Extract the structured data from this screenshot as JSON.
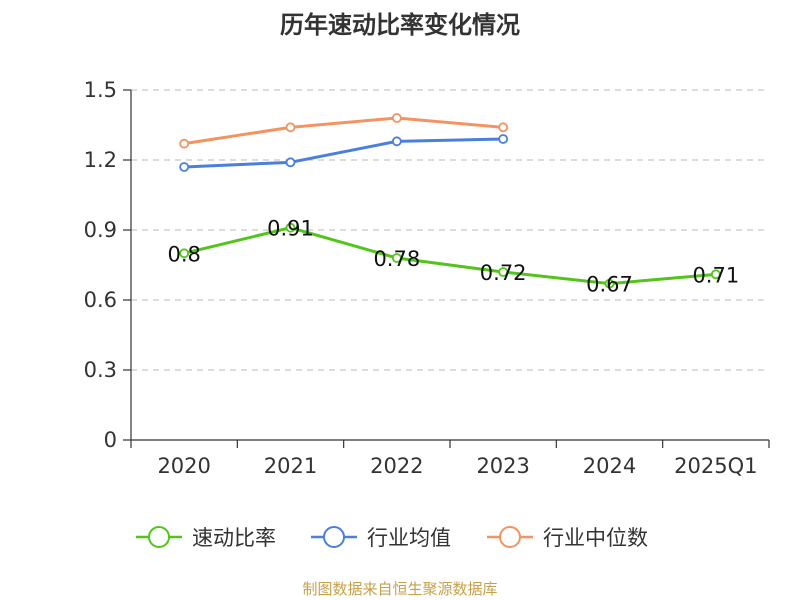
{
  "title": "历年速动比率变化情况",
  "source": "制图数据来自恒生聚源数据库",
  "chart_data": {
    "type": "line",
    "title": "历年速动比率变化情况",
    "categories": [
      "2020",
      "2021",
      "2022",
      "2023",
      "2024",
      "2025Q1"
    ],
    "yticks": [
      "0",
      "0.3",
      "0.6",
      "0.9",
      "1.2",
      "1.5"
    ],
    "ylim": [
      0,
      1.5
    ],
    "grid": true,
    "legend_position": "bottom",
    "series": [
      {
        "name": "速动比率",
        "color": "#52c41a",
        "values": [
          0.8,
          0.91,
          0.78,
          0.72,
          0.67,
          0.71
        ],
        "labels": [
          "0.8",
          "0.91",
          "0.78",
          "0.72",
          "0.67",
          "0.71"
        ]
      },
      {
        "name": "行业均值",
        "color": "#4a7fdc",
        "values": [
          1.17,
          1.19,
          1.28,
          1.29,
          null,
          null
        ]
      },
      {
        "name": "行业中位数",
        "color": "#f39361",
        "values": [
          1.27,
          1.34,
          1.38,
          1.34,
          null,
          null
        ]
      }
    ]
  }
}
